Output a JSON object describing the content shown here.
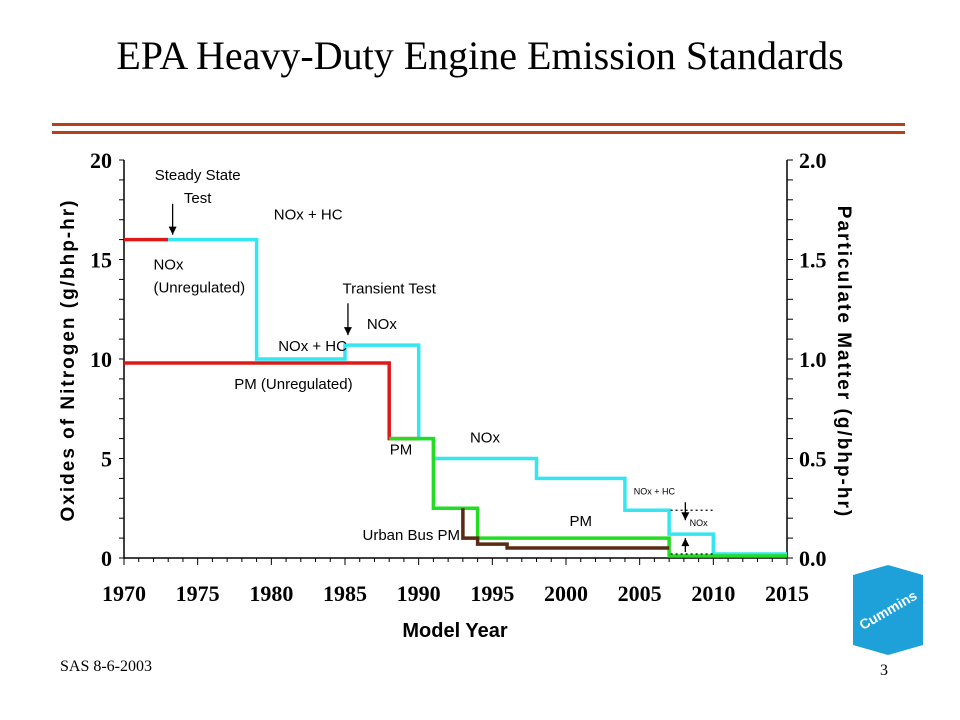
{
  "slide": {
    "title": "EPA Heavy-Duty Engine Emission Standards",
    "footer_left": "SAS 8-6-2003",
    "page_number": "3",
    "logo_text": "Cummins",
    "rule_color": "#b5401a"
  },
  "chart_data": {
    "type": "line",
    "xlabel": "Model Year",
    "ylabel_left": "Oxides of Nitrogen (g/bhp-hr)",
    "ylabel_right": "Particulate Matter (g/bhp-hr)",
    "xlim": [
      1970,
      2015
    ],
    "ylim_left": [
      0,
      20
    ],
    "ylim_right": [
      0,
      2.0
    ],
    "x_ticks": [
      1970,
      1975,
      1980,
      1985,
      1990,
      1995,
      2000,
      2005,
      2010,
      2015
    ],
    "y_ticks_left": [
      "0",
      "5",
      "10",
      "15",
      "20"
    ],
    "y_ticks_right": [
      "0.0",
      "0.5",
      "1.0",
      "1.5",
      "2.0"
    ],
    "grid": false,
    "series": [
      {
        "color": "#dd1a1a",
        "axis": "left",
        "points": [
          [
            1970,
            16
          ],
          [
            1973,
            16
          ]
        ]
      },
      {
        "color": "#33e6f0",
        "axis": "left",
        "points": [
          [
            1973,
            16
          ],
          [
            1979,
            16
          ],
          [
            1979,
            10
          ],
          [
            1985,
            10
          ],
          [
            1985,
            10.7
          ],
          [
            1990,
            10.7
          ],
          [
            1990,
            6
          ],
          [
            1991,
            6
          ],
          [
            1991,
            5
          ],
          [
            1998,
            5
          ],
          [
            1998,
            4
          ],
          [
            2004,
            4
          ],
          [
            2004,
            2.4
          ],
          [
            2007,
            2.4
          ],
          [
            2007,
            1.2
          ],
          [
            2010,
            1.2
          ],
          [
            2010,
            0.2
          ],
          [
            2015,
            0.2
          ]
        ]
      },
      {
        "color": "#dd1a1a",
        "axis": "right",
        "points": [
          [
            1970,
            0.98
          ],
          [
            1988,
            0.98
          ],
          [
            1988,
            0.6
          ],
          [
            1990,
            0.6
          ]
        ]
      },
      {
        "color": "#22dd22",
        "axis": "right",
        "points": [
          [
            1988,
            0.6
          ],
          [
            1991,
            0.6
          ],
          [
            1991,
            0.25
          ],
          [
            1994,
            0.25
          ],
          [
            1994,
            0.1
          ],
          [
            2007,
            0.1
          ],
          [
            2007,
            0.01
          ],
          [
            2015,
            0.01
          ]
        ]
      },
      {
        "color": "#5b2a12",
        "axis": "right",
        "points": [
          [
            1993,
            0.25
          ],
          [
            1993,
            0.1
          ],
          [
            1994,
            0.1
          ],
          [
            1994,
            0.07
          ],
          [
            1996,
            0.07
          ],
          [
            1996,
            0.05
          ],
          [
            2007,
            0.05
          ]
        ]
      }
    ],
    "annotations": [
      {
        "id": "steady-state",
        "lines": [
          "Steady State",
          "Test"
        ],
        "x": 1975,
        "y": 19,
        "size": 15
      },
      {
        "id": "nox-hc-1",
        "lines": [
          "NOx + HC"
        ],
        "x": 1982.5,
        "y": 17,
        "size": 15
      },
      {
        "id": "nox-unreg",
        "lines": [
          "NOx",
          "(Unregulated)"
        ],
        "x": 1972,
        "y": 14.5,
        "size": 15,
        "anchor": "start"
      },
      {
        "id": "transient",
        "lines": [
          "Transient Test"
        ],
        "x": 1988,
        "y": 13.3,
        "size": 15
      },
      {
        "id": "nox-1",
        "lines": [
          "NOx"
        ],
        "x": 1987.5,
        "y": 11.5,
        "size": 15
      },
      {
        "id": "nox-hc-2",
        "lines": [
          "NOx + HC"
        ],
        "x": 1982.8,
        "y": 10.4,
        "size": 15
      },
      {
        "id": "pm-unreg",
        "lines": [
          "PM (Unregulated)"
        ],
        "x": 1981.5,
        "y": 8.5,
        "size": 15
      },
      {
        "id": "pm-1",
        "lines": [
          "PM"
        ],
        "x": 1988.8,
        "y": 5.2,
        "size": 15
      },
      {
        "id": "nox-2",
        "lines": [
          "NOx"
        ],
        "x": 1994.5,
        "y": 5.8,
        "size": 15
      },
      {
        "id": "pm-2",
        "lines": [
          "PM"
        ],
        "x": 2001,
        "y": 1.6,
        "size": 15
      },
      {
        "id": "urban-bus-pm",
        "lines": [
          "Urban Bus PM"
        ],
        "x": 1989.5,
        "y": 0.9,
        "size": 15
      },
      {
        "id": "nox-hc-small",
        "lines": [
          "NOx + HC"
        ],
        "x": 2006,
        "y": 3.2,
        "size": 9
      },
      {
        "id": "nox-small",
        "lines": [
          "NOx"
        ],
        "x": 2009,
        "y": 1.6,
        "size": 9
      }
    ]
  }
}
